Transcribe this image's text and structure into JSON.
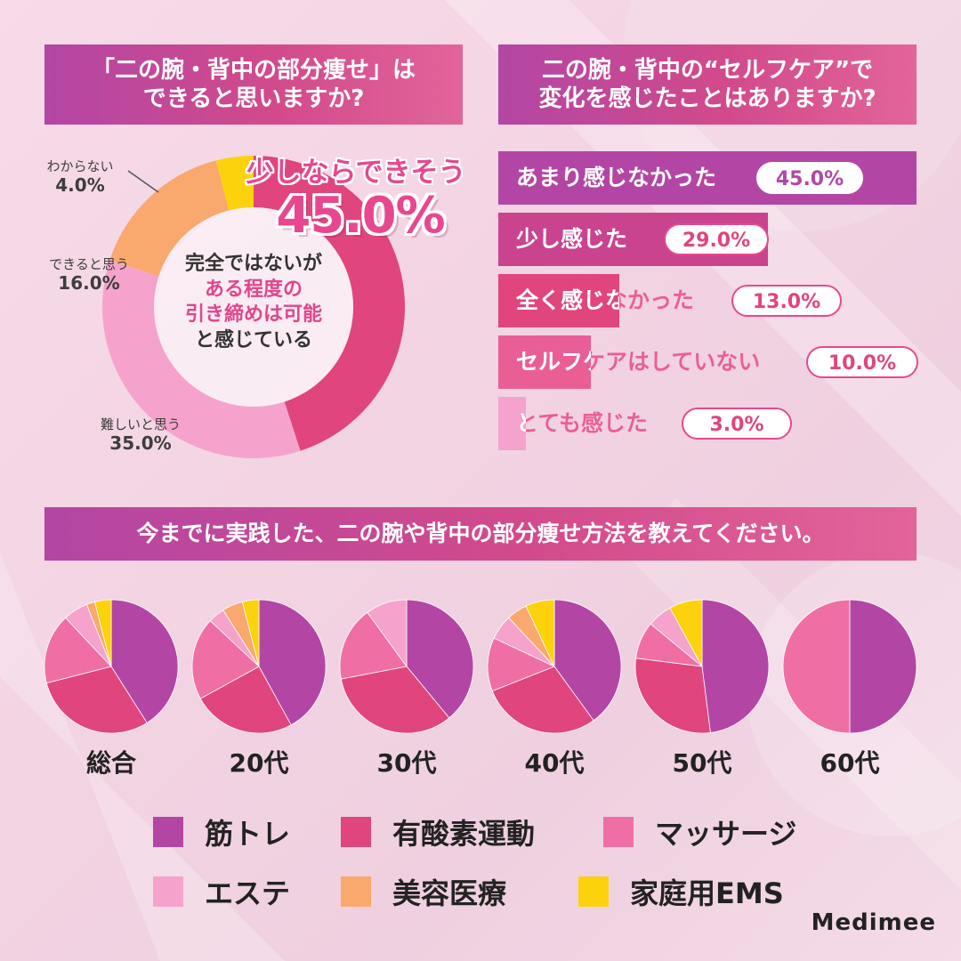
{
  "colors": {
    "muscle": "#b346a4",
    "aerobic": "#e0457d",
    "massage": "#ef6fa5",
    "esthe": "#f5a3cc",
    "beauty_medical": "#f9a86e",
    "home_ems": "#fcd20c",
    "accent": "#e8478f"
  },
  "q1": {
    "title_line1": "「二の腕・背中の部分痩せ」は",
    "title_line2": "できると思いますか?",
    "highlight_label": "少しならできそう",
    "highlight_value": "45.0%",
    "center_line1": "完全ではないが",
    "center_line2": "ある程度の",
    "center_line3": "引き締めは可能",
    "center_line4": "と感じている",
    "labels": [
      {
        "text": "わからない",
        "pct": "4.0%"
      },
      {
        "text": "できると思う",
        "pct": "16.0%"
      },
      {
        "text": "難しいと思う",
        "pct": "35.0%"
      }
    ]
  },
  "q2": {
    "title_line1": "二の腕・背中の“セルフケア”で",
    "title_line2": "変化を感じたことはありますか?",
    "bars": [
      {
        "label": "あまり感じなかった",
        "pct_label": "45.0%"
      },
      {
        "label": "少し感じた",
        "pct_label": "29.0%"
      },
      {
        "label": "全く感じなかった",
        "pct_label": "13.0%"
      },
      {
        "label": "セルフケアはしていない",
        "pct_label": "10.0%"
      },
      {
        "label": "とても感じた",
        "pct_label": "3.0%"
      }
    ]
  },
  "q3": {
    "title": "今までに実践した、二の腕や背中の部分痩せ方法を教えてください。",
    "legend": [
      "筋トレ",
      "有酸素運動",
      "マッサージ",
      "エステ",
      "美容医療",
      "家庭用EMS"
    ]
  },
  "chart_data": [
    {
      "type": "pie",
      "subtype": "donut",
      "title": "「二の腕・背中の部分痩せ」はできると思いますか?",
      "categories": [
        "少しならできそう",
        "難しいと思う",
        "できると思う",
        "わからない"
      ],
      "values": [
        45.0,
        35.0,
        16.0,
        4.0
      ],
      "colors": [
        "#e0457d",
        "#f5a3cc",
        "#f9a86e",
        "#fcd20c"
      ]
    },
    {
      "type": "bar",
      "orientation": "horizontal",
      "title": "二の腕・背中の“セルフケア”で変化を感じたことはありますか?",
      "categories": [
        "あまり感じなかった",
        "少し感じた",
        "全く感じなかった",
        "セルフケアはしていない",
        "とても感じた"
      ],
      "values": [
        45.0,
        29.0,
        13.0,
        10.0,
        3.0
      ],
      "xlim": [
        0,
        45
      ],
      "colors": [
        "#b346a4",
        "#c9438f",
        "#e0457d",
        "#ea5e96",
        "#f5a3cc"
      ]
    },
    {
      "type": "pie",
      "title": "今までに実践した、二の腕や背中の部分痩せ方法を教えてください。",
      "legend": [
        "筋トレ",
        "有酸素運動",
        "マッサージ",
        "エステ",
        "美容医療",
        "家庭用EMS"
      ],
      "groups": [
        {
          "name": "総合",
          "values": [
            41,
            30,
            17,
            6,
            2,
            4
          ]
        },
        {
          "name": "20代",
          "values": [
            42,
            25,
            20,
            4,
            5,
            4
          ]
        },
        {
          "name": "30代",
          "values": [
            39,
            33,
            18,
            10,
            0,
            0
          ]
        },
        {
          "name": "40代",
          "values": [
            40,
            29,
            13,
            6,
            5,
            7
          ]
        },
        {
          "name": "50代",
          "values": [
            48,
            29,
            9,
            6,
            0,
            8
          ]
        },
        {
          "name": "60代",
          "values": [
            50,
            0,
            50,
            0,
            0,
            0
          ]
        }
      ]
    }
  ],
  "brand": "Medimee"
}
